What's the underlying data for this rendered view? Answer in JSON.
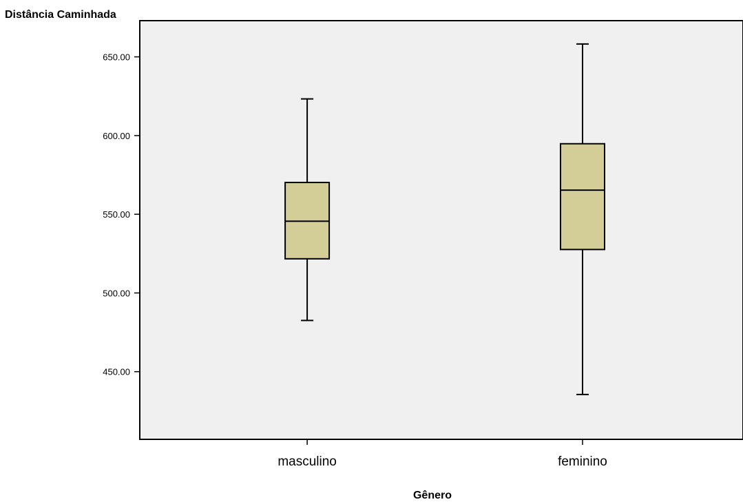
{
  "chart_data": {
    "type": "boxplot",
    "ylabel": "Distância Caminhada",
    "xlabel": "Gênero",
    "ylim": [
      407,
      673
    ],
    "yticks": [
      450,
      500,
      550,
      600,
      650
    ],
    "ytick_labels": [
      "450.00",
      "500.00",
      "550.00",
      "600.00",
      "650.00"
    ],
    "categories": [
      "masculino",
      "feminino"
    ],
    "boxes": [
      {
        "category": "masculino",
        "min": 482.5,
        "q1": 521.7,
        "median": 545.6,
        "q3": 570.2,
        "max": 623.3
      },
      {
        "category": "feminino",
        "min": 435.5,
        "q1": 527.6,
        "median": 565.3,
        "q3": 594.8,
        "max": 658.2
      }
    ],
    "grid": false,
    "colors": {
      "plot_background": "#f0f0f0",
      "box_fill": "#d3ce98",
      "line": "#000000"
    }
  }
}
